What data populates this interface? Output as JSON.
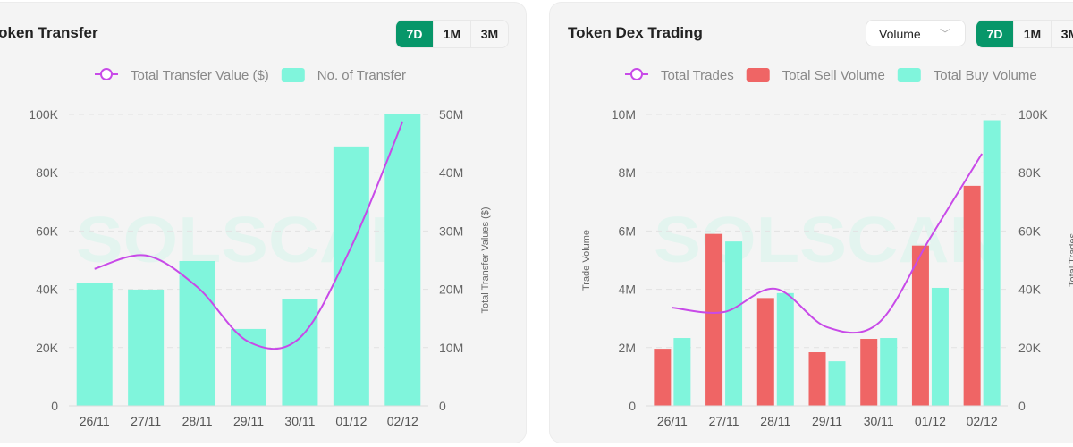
{
  "colors": {
    "accent": "#079669",
    "bar_teal": "#80f5dc",
    "bar_red": "#ef6565",
    "line": "#c84ae8"
  },
  "watermark": "SOLSCAN",
  "range_buttons": [
    "7D",
    "1M",
    "3M"
  ],
  "left": {
    "title": "Token Transfer"
  },
  "right": {
    "title": "Token Dex Trading",
    "select_value": "Volume"
  },
  "chart_data": [
    {
      "type": "bar",
      "title": "Token Transfer",
      "categories": [
        "26/11",
        "27/11",
        "28/11",
        "29/11",
        "30/11",
        "01/12",
        "02/12"
      ],
      "ylabel": "No. of Transfer",
      "y2label": "Total Transfer Values ($)",
      "yticks": [
        "0",
        "20K",
        "40K",
        "60K",
        "80K",
        "100K"
      ],
      "y2ticks": [
        "0",
        "10M",
        "20M",
        "30M",
        "40M",
        "50M"
      ],
      "ylim": [
        0,
        100000
      ],
      "y2lim": [
        0,
        50000000
      ],
      "legend": "top",
      "series": [
        {
          "name": "Total Transfer Value ($)",
          "type": "line",
          "axis": "right",
          "values": [
            23500000,
            25800000,
            20400000,
            11000000,
            11700000,
            27300000,
            48800000
          ]
        },
        {
          "name": "No. of Transfer",
          "type": "bar",
          "axis": "left",
          "values": [
            42300,
            39900,
            49700,
            26400,
            36500,
            89000,
            100000
          ]
        }
      ]
    },
    {
      "type": "bar",
      "title": "Token Dex Trading",
      "categories": [
        "26/11",
        "27/11",
        "28/11",
        "29/11",
        "30/11",
        "01/12",
        "02/12"
      ],
      "ylabel": "Trade Volume",
      "y2label": "Total Trades",
      "yticks": [
        "0",
        "2M",
        "4M",
        "6M",
        "8M",
        "10M"
      ],
      "y2ticks": [
        "0",
        "20K",
        "40K",
        "60K",
        "80K",
        "100K"
      ],
      "ylim": [
        0,
        10000000
      ],
      "y2lim": [
        0,
        100000
      ],
      "legend": "top",
      "series": [
        {
          "name": "Total Trades",
          "type": "line",
          "axis": "right",
          "values": [
            33700,
            32200,
            40200,
            27000,
            28500,
            57700,
            86500
          ]
        },
        {
          "name": "Total Sell Volume",
          "type": "bar",
          "axis": "left",
          "values": [
            1960000,
            5900000,
            3700000,
            1840000,
            2300000,
            5500000,
            7550000
          ]
        },
        {
          "name": "Total Buy Volume",
          "type": "bar",
          "axis": "left",
          "values": [
            2330000,
            5640000,
            3870000,
            1530000,
            2330000,
            4050000,
            9800000
          ]
        }
      ]
    }
  ]
}
